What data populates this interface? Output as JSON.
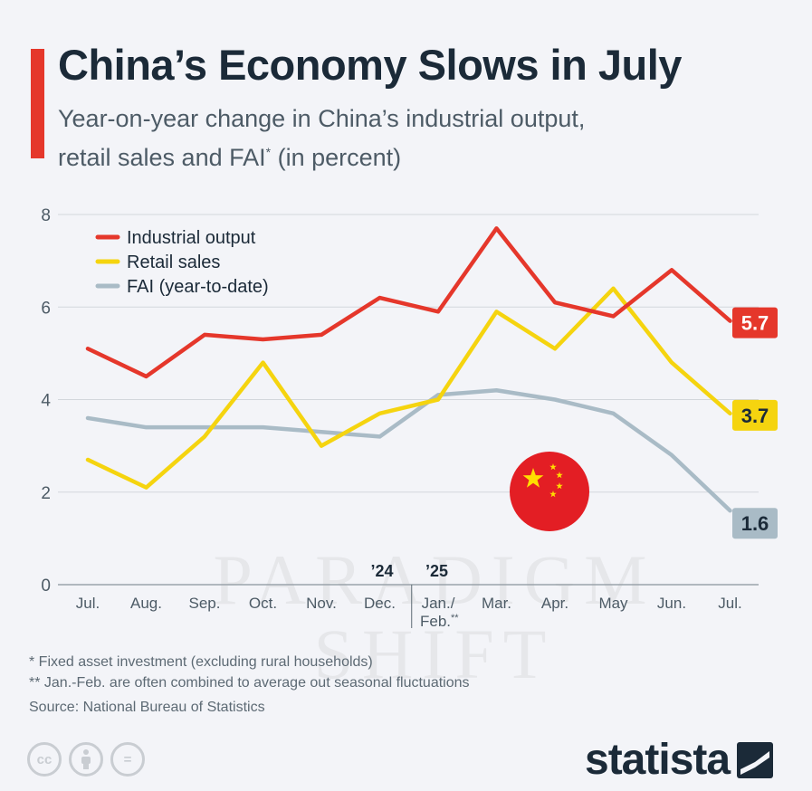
{
  "header": {
    "title": "China’s Economy Slows in July",
    "subtitle_line1": "Year-on-year change in China’s industrial output,",
    "subtitle_line2_a": "retail sales and FAI",
    "subtitle_line2_sup": "*",
    "subtitle_line2_b": " (in percent)"
  },
  "chart_data": {
    "type": "line",
    "categories": [
      "Jul.",
      "Aug.",
      "Sep.",
      "Oct.",
      "Nov.",
      "Dec.",
      "Jan./",
      "Mar.",
      "Apr.",
      "May",
      "Jun.",
      "Jul."
    ],
    "category_sublabel": {
      "index": 6,
      "text": "Feb.",
      "sup": "**"
    },
    "year_markers": [
      {
        "index": 5,
        "label": "’24"
      },
      {
        "index": 6,
        "label": "’25"
      }
    ],
    "ylim": [
      0,
      8
    ],
    "yticks": [
      0,
      2,
      4,
      6,
      8
    ],
    "grid": true,
    "legend_position": "top-left",
    "series": [
      {
        "name": "Industrial output",
        "color": "#e5372b",
        "values": [
          5.1,
          4.5,
          5.4,
          5.3,
          5.4,
          6.2,
          5.9,
          7.7,
          6.1,
          5.8,
          6.8,
          5.7
        ],
        "end_label": "5.7",
        "end_label_text_color": "#ffffff"
      },
      {
        "name": "Retail sales",
        "color": "#f5d40f",
        "values": [
          2.7,
          2.1,
          3.2,
          4.8,
          3.0,
          3.7,
          4.0,
          5.9,
          5.1,
          6.4,
          4.8,
          3.7
        ],
        "end_label": "3.7",
        "end_label_text_color": "#1b2a38"
      },
      {
        "name": "FAI (year-to-date)",
        "color": "#a9bbc6",
        "values": [
          3.6,
          3.4,
          3.4,
          3.4,
          3.3,
          3.2,
          4.1,
          4.2,
          4.0,
          3.7,
          2.8,
          1.6
        ],
        "end_label": "1.6",
        "end_label_text_color": "#1b2a38"
      }
    ]
  },
  "footnotes": {
    "note1": "*  Fixed asset investment (excluding rural households)",
    "note2": "** Jan.-Feb. are often combined to average out seasonal fluctuations",
    "source": "Source: National Bureau of Statistics"
  },
  "brand": {
    "logo_text": "statista",
    "license_icons": [
      "cc",
      "by",
      "="
    ]
  },
  "watermark": {
    "line1": "PARADIGM",
    "line2": "SHIFT"
  }
}
